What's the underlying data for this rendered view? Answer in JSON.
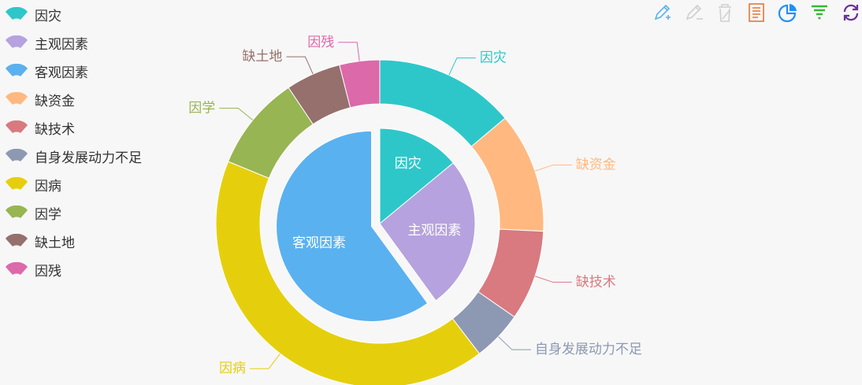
{
  "legend": [
    {
      "label": "因灾",
      "color": "#2ec7c9"
    },
    {
      "label": "主观因素",
      "color": "#b6a2de"
    },
    {
      "label": "客观因素",
      "color": "#5ab1ef"
    },
    {
      "label": "缺资金",
      "color": "#ffb980"
    },
    {
      "label": "缺技术",
      "color": "#d87a80"
    },
    {
      "label": "自身发展动力不足",
      "color": "#8d98b3"
    },
    {
      "label": "因病",
      "color": "#e5cf0d"
    },
    {
      "label": "因学",
      "color": "#97b552"
    },
    {
      "label": "缺土地",
      "color": "#95706d"
    },
    {
      "label": "因残",
      "color": "#dc69aa"
    }
  ],
  "toolbox": [
    {
      "icon": "mark-pen-icon",
      "color": "#5ab1ef"
    },
    {
      "icon": "mark-undo-icon",
      "color": "#cfcfcf"
    },
    {
      "icon": "mark-clear-icon",
      "color": "#cfcfcf"
    },
    {
      "icon": "data-view-icon",
      "color": "#e2763a"
    },
    {
      "icon": "pie-chart-icon",
      "color": "#1e90ff"
    },
    {
      "icon": "funnel-icon",
      "color": "#34b934"
    },
    {
      "icon": "refresh-icon",
      "color": "#6b2fa3"
    }
  ],
  "chart_data": {
    "type": "pie",
    "legend_position": "left",
    "series": [
      {
        "name": "",
        "kind": "pie",
        "slices": [
          {
            "label": "因灾",
            "value": 14,
            "color": "#2ec7c9"
          },
          {
            "label": "主观因素",
            "value": 26,
            "color": "#b6a2de"
          },
          {
            "label": "客观因素",
            "value": 60,
            "color": "#5ab1ef"
          }
        ]
      },
      {
        "name": "",
        "kind": "donut",
        "slices": [
          {
            "label": "因灾",
            "value": 14,
            "color": "#2ec7c9"
          },
          {
            "label": "缺资金",
            "value": 12,
            "color": "#ffb980"
          },
          {
            "label": "缺技术",
            "value": 9,
            "color": "#d87a80"
          },
          {
            "label": "自身发展动力不足",
            "value": 5,
            "color": "#8d98b3"
          },
          {
            "label": "因病",
            "value": 42,
            "color": "#e5cf0d"
          },
          {
            "label": "因学",
            "value": 9.5,
            "color": "#97b552"
          },
          {
            "label": "缺土地",
            "value": 5.5,
            "color": "#95706d"
          },
          {
            "label": "因残",
            "value": 4,
            "color": "#dc69aa"
          }
        ]
      }
    ]
  }
}
